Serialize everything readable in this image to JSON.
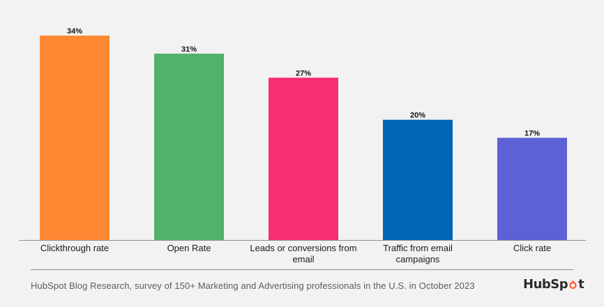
{
  "chart_data": {
    "type": "bar",
    "categories": [
      "Clickthrough rate",
      "Open Rate",
      "Leads or conversions from email",
      "Traffic from email campaigns",
      "Click rate"
    ],
    "category_lines": [
      [
        "Clickthrough rate"
      ],
      [
        "Open Rate"
      ],
      [
        "Leads or conversions from",
        "email"
      ],
      [
        "Traffic from email",
        "campaigns"
      ],
      [
        "Click rate"
      ]
    ],
    "values": [
      34,
      31,
      27,
      20,
      17
    ],
    "value_labels": [
      "34%",
      "31%",
      "27%",
      "20%",
      "17%"
    ],
    "unit": "%",
    "colors": [
      "#ff8933",
      "#52b26b",
      "#f72e70",
      "#0065b2",
      "#5e61d6"
    ],
    "ylim": [
      0,
      34
    ],
    "grid": false,
    "title": "",
    "xlabel": "",
    "ylabel": ""
  },
  "footer": {
    "source": "HubSpot Blog Research, survey of 150+ Marketing and Advertising professionals in the U.S. in October 2023",
    "brand_prefix": "HubSp",
    "brand_suffix": "t"
  },
  "colors": {
    "background": "#f2f2f2",
    "axis": "#8e8e8e",
    "brand_accent": "#ff5c35"
  }
}
